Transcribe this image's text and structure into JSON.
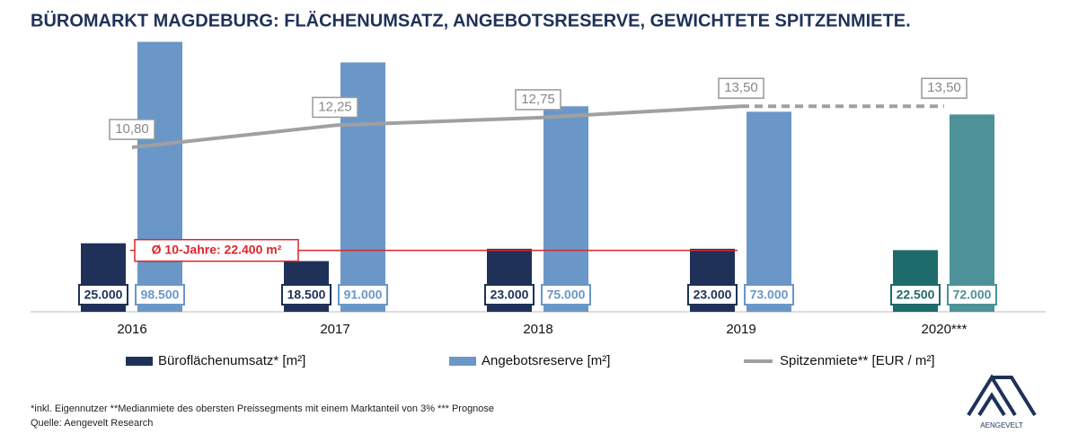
{
  "chart_data": {
    "type": "bar",
    "title": "BÜROMARKT MAGDEBURG: FLÄCHENUMSATZ, ANGEBOTSRESERVE, GEWICHTETE SPITZENMIETE.",
    "categories": [
      "2016",
      "2017",
      "2018",
      "2019",
      "2020***"
    ],
    "ylim": [
      0,
      100000
    ],
    "y2lim": [
      0,
      18
    ],
    "series": [
      {
        "name": "Büroflächenumsatz* [m²]",
        "type": "bar",
        "color": "#1f3158",
        "colors": [
          "#1f3158",
          "#1f3158",
          "#1f3158",
          "#1f3158",
          "#1e6b6b"
        ],
        "values": [
          25000,
          18500,
          23000,
          23000,
          22500
        ],
        "value_labels": [
          "25.000",
          "18.500",
          "23.000",
          "23.000",
          "22.500"
        ]
      },
      {
        "name": "Angebotsreserve [m²]",
        "type": "bar",
        "color": "#6a97c8",
        "colors": [
          "#6a97c8",
          "#6a97c8",
          "#6a97c8",
          "#6a97c8",
          "#4d9199"
        ],
        "values": [
          98500,
          91000,
          75000,
          73000,
          72000
        ],
        "value_labels": [
          "98.500",
          "91.000",
          "75.000",
          "73.000",
          "72.000"
        ]
      },
      {
        "name": "Spitzenmiete** [EUR / m²]",
        "type": "line",
        "axis": "y2",
        "color": "#a0a0a0",
        "dashed_segments": [
          3
        ],
        "values": [
          10.8,
          12.25,
          12.75,
          13.5,
          13.5
        ],
        "value_labels": [
          "10,80",
          "12,25",
          "12,75",
          "13,50",
          "13,50"
        ]
      }
    ],
    "average": {
      "value": 22400,
      "label": "Ø 10-Jahre: 22.400 m²",
      "color": "#d9262c"
    }
  },
  "footnote": "*inkl. Eigennutzer **Medianmiete des obersten Preissegments mit einem Marktanteil von 3% *** Prognose",
  "source": "Quelle: Aengevelt Research",
  "logo": "AENGEVELT"
}
